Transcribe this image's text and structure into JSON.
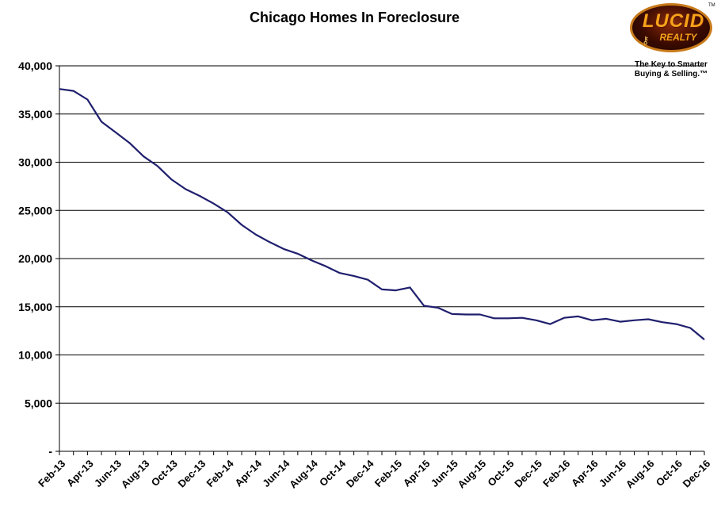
{
  "chart_data": {
    "type": "line",
    "title": "Chicago Homes In Foreclosure",
    "xlabel": "",
    "ylabel": "",
    "ylim": [
      0,
      40000
    ],
    "grid": true,
    "y_tick_labels": [
      "-",
      "5,000",
      "10,000",
      "15,000",
      "20,000",
      "25,000",
      "30,000",
      "35,000",
      "40,000"
    ],
    "x_tick_labels": [
      "Feb-13",
      "Apr-13",
      "Jun-13",
      "Aug-13",
      "Oct-13",
      "Dec-13",
      "Feb-14",
      "Apr-14",
      "Jun-14",
      "Aug-14",
      "Oct-14",
      "Dec-14",
      "Feb-15",
      "Apr-15",
      "Jun-15",
      "Aug-15",
      "Oct-15",
      "Dec-15",
      "Feb-16",
      "Apr-16",
      "Jun-16",
      "Aug-16",
      "Oct-16",
      "Dec-16"
    ],
    "x": [
      "Feb-13",
      "Mar-13",
      "Apr-13",
      "May-13",
      "Jun-13",
      "Jul-13",
      "Aug-13",
      "Sep-13",
      "Oct-13",
      "Nov-13",
      "Dec-13",
      "Jan-14",
      "Feb-14",
      "Mar-14",
      "Apr-14",
      "May-14",
      "Jun-14",
      "Jul-14",
      "Aug-14",
      "Sep-14",
      "Oct-14",
      "Nov-14",
      "Dec-14",
      "Jan-15",
      "Feb-15",
      "Mar-15",
      "Apr-15",
      "May-15",
      "Jun-15",
      "Jul-15",
      "Aug-15",
      "Sep-15",
      "Oct-15",
      "Nov-15",
      "Dec-15",
      "Jan-16",
      "Feb-16",
      "Mar-16",
      "Apr-16",
      "May-16",
      "Jun-16",
      "Jul-16",
      "Aug-16",
      "Sep-16",
      "Oct-16",
      "Nov-16",
      "Dec-16"
    ],
    "series": [
      {
        "color": "#1f1f6e",
        "values": [
          37600,
          37400,
          36500,
          34200,
          33100,
          32000,
          30600,
          29600,
          28200,
          27200,
          26500,
          25700,
          24800,
          23500,
          22500,
          21700,
          21000,
          20500,
          19800,
          19200,
          18500,
          18200,
          17800,
          16800,
          16700,
          17000,
          15100,
          14900,
          14250,
          14200,
          14200,
          13800,
          13800,
          13850,
          13600,
          13200,
          13850,
          14000,
          13600,
          13750,
          13450,
          13600,
          13700,
          13400,
          13200,
          12800,
          11600
        ]
      }
    ]
  },
  "logo": {
    "word1": "LUCID",
    "word2": "REALTY",
    "tm": "TM",
    "tagline_line1": "The Key to Smarter",
    "tagline_line2": "Buying & Selling.™"
  }
}
